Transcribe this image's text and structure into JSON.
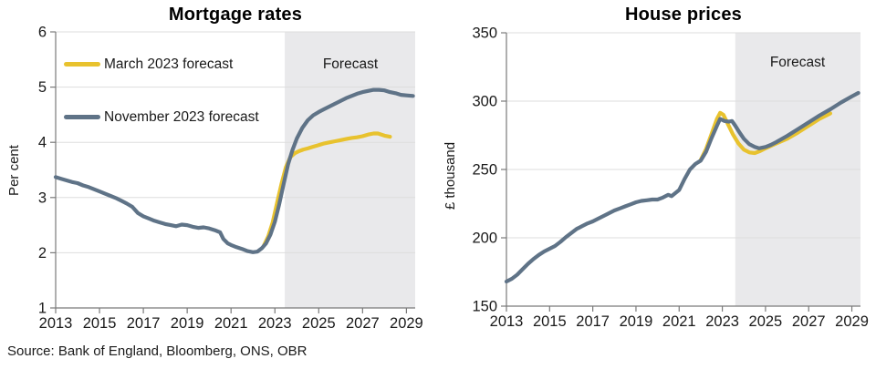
{
  "source": "Source: Bank of England, Bloomberg, ONS, OBR",
  "colors": {
    "march": "#E8C22E",
    "november": "#5F7387",
    "band": "#E9E9EB",
    "grid": "#DDDDDD",
    "axis": "#7A7A7A",
    "tick_text": "#1A1A1A"
  },
  "chart_data": [
    {
      "type": "line",
      "title": "Mortgage rates",
      "ylabel": "Per cent",
      "forecast_label": "Forecast",
      "x_ticks": [
        2013,
        2015,
        2017,
        2019,
        2021,
        2023,
        2025,
        2027,
        2029
      ],
      "y_ticks": [
        1,
        2,
        3,
        4,
        5,
        6
      ],
      "x_range": [
        2013,
        2029.4
      ],
      "y_range": [
        1,
        6
      ],
      "forecast_start": 2023.45,
      "grid": true,
      "legend_position": "top-left",
      "legend": [
        {
          "label": "March 2023 forecast",
          "color_key": "march"
        },
        {
          "label": "November 2023 forecast",
          "color_key": "november"
        }
      ],
      "series": [
        {
          "name": "March 2023 forecast",
          "color_key": "march",
          "points": [
            [
              2022.5,
              2.13
            ],
            [
              2022.7,
              2.3
            ],
            [
              2022.9,
              2.55
            ],
            [
              2023.1,
              2.9
            ],
            [
              2023.3,
              3.25
            ],
            [
              2023.5,
              3.55
            ],
            [
              2023.7,
              3.73
            ],
            [
              2023.9,
              3.8
            ],
            [
              2024.1,
              3.84
            ],
            [
              2024.3,
              3.87
            ],
            [
              2024.5,
              3.89
            ],
            [
              2024.75,
              3.92
            ],
            [
              2025,
              3.95
            ],
            [
              2025.25,
              3.98
            ],
            [
              2025.5,
              4.0
            ],
            [
              2025.75,
              4.02
            ],
            [
              2026,
              4.04
            ],
            [
              2026.25,
              4.06
            ],
            [
              2026.5,
              4.08
            ],
            [
              2026.75,
              4.09
            ],
            [
              2027,
              4.11
            ],
            [
              2027.25,
              4.14
            ],
            [
              2027.5,
              4.16
            ],
            [
              2027.7,
              4.16
            ],
            [
              2028,
              4.12
            ],
            [
              2028.25,
              4.1
            ]
          ]
        },
        {
          "name": "November 2023 forecast",
          "color_key": "november",
          "points": [
            [
              2013,
              3.37
            ],
            [
              2013.25,
              3.34
            ],
            [
              2013.5,
              3.31
            ],
            [
              2013.75,
              3.28
            ],
            [
              2014,
              3.26
            ],
            [
              2014.25,
              3.22
            ],
            [
              2014.5,
              3.19
            ],
            [
              2014.75,
              3.15
            ],
            [
              2015,
              3.11
            ],
            [
              2015.25,
              3.07
            ],
            [
              2015.5,
              3.03
            ],
            [
              2015.75,
              2.99
            ],
            [
              2016,
              2.94
            ],
            [
              2016.25,
              2.89
            ],
            [
              2016.5,
              2.83
            ],
            [
              2016.75,
              2.72
            ],
            [
              2017,
              2.66
            ],
            [
              2017.25,
              2.62
            ],
            [
              2017.5,
              2.58
            ],
            [
              2017.75,
              2.55
            ],
            [
              2018,
              2.52
            ],
            [
              2018.25,
              2.5
            ],
            [
              2018.5,
              2.48
            ],
            [
              2018.75,
              2.51
            ],
            [
              2019,
              2.5
            ],
            [
              2019.25,
              2.47
            ],
            [
              2019.5,
              2.45
            ],
            [
              2019.75,
              2.46
            ],
            [
              2020,
              2.44
            ],
            [
              2020.25,
              2.41
            ],
            [
              2020.5,
              2.37
            ],
            [
              2020.65,
              2.25
            ],
            [
              2020.85,
              2.17
            ],
            [
              2021,
              2.14
            ],
            [
              2021.25,
              2.1
            ],
            [
              2021.5,
              2.07
            ],
            [
              2021.75,
              2.03
            ],
            [
              2022,
              2.01
            ],
            [
              2022.2,
              2.02
            ],
            [
              2022.4,
              2.08
            ],
            [
              2022.6,
              2.17
            ],
            [
              2022.8,
              2.33
            ],
            [
              2023,
              2.56
            ],
            [
              2023.2,
              2.88
            ],
            [
              2023.4,
              3.25
            ],
            [
              2023.6,
              3.6
            ],
            [
              2023.8,
              3.86
            ],
            [
              2024,
              4.07
            ],
            [
              2024.25,
              4.26
            ],
            [
              2024.5,
              4.4
            ],
            [
              2024.75,
              4.49
            ],
            [
              2025,
              4.55
            ],
            [
              2025.25,
              4.6
            ],
            [
              2025.5,
              4.65
            ],
            [
              2025.75,
              4.7
            ],
            [
              2026,
              4.75
            ],
            [
              2026.25,
              4.8
            ],
            [
              2026.5,
              4.84
            ],
            [
              2026.75,
              4.88
            ],
            [
              2027,
              4.91
            ],
            [
              2027.25,
              4.93
            ],
            [
              2027.5,
              4.95
            ],
            [
              2027.75,
              4.95
            ],
            [
              2028,
              4.94
            ],
            [
              2028.25,
              4.91
            ],
            [
              2028.5,
              4.89
            ],
            [
              2028.75,
              4.86
            ],
            [
              2029,
              4.85
            ],
            [
              2029.3,
              4.84
            ]
          ]
        }
      ]
    },
    {
      "type": "line",
      "title": "House prices",
      "ylabel": "£ thousand",
      "forecast_label": "Forecast",
      "x_ticks": [
        2013,
        2015,
        2017,
        2019,
        2021,
        2023,
        2025,
        2027,
        2029
      ],
      "y_ticks": [
        150,
        200,
        250,
        300,
        350
      ],
      "x_range": [
        2013,
        2029.4
      ],
      "y_range": [
        150,
        350
      ],
      "forecast_start": 2023.6,
      "grid": true,
      "legend": [],
      "series": [
        {
          "name": "March 2023 forecast",
          "color_key": "march",
          "points": [
            [
              2022,
              257
            ],
            [
              2022.25,
              265
            ],
            [
              2022.5,
              276
            ],
            [
              2022.75,
              287
            ],
            [
              2022.9,
              291.5
            ],
            [
              2023.05,
              290
            ],
            [
              2023.25,
              283.5
            ],
            [
              2023.5,
              275.5
            ],
            [
              2023.75,
              269
            ],
            [
              2024,
              264.5
            ],
            [
              2024.25,
              262.5
            ],
            [
              2024.5,
              262
            ],
            [
              2024.75,
              263.5
            ],
            [
              2025,
              265.5
            ],
            [
              2025.5,
              269
            ],
            [
              2026,
              272.5
            ],
            [
              2026.5,
              277
            ],
            [
              2027,
              282
            ],
            [
              2027.5,
              287
            ],
            [
              2028,
              291
            ]
          ]
        },
        {
          "name": "November 2023 forecast",
          "color_key": "november",
          "points": [
            [
              2013,
              168
            ],
            [
              2013.25,
              170
            ],
            [
              2013.5,
              173
            ],
            [
              2013.75,
              177
            ],
            [
              2014,
              181
            ],
            [
              2014.25,
              184.5
            ],
            [
              2014.5,
              187.5
            ],
            [
              2014.75,
              190
            ],
            [
              2015,
              192
            ],
            [
              2015.25,
              194
            ],
            [
              2015.5,
              197
            ],
            [
              2015.75,
              200.5
            ],
            [
              2016,
              203.5
            ],
            [
              2016.25,
              206.5
            ],
            [
              2016.5,
              208.5
            ],
            [
              2016.75,
              210.5
            ],
            [
              2017,
              212
            ],
            [
              2017.25,
              214
            ],
            [
              2017.5,
              216
            ],
            [
              2017.75,
              218
            ],
            [
              2018,
              220
            ],
            [
              2018.25,
              221.5
            ],
            [
              2018.5,
              223
            ],
            [
              2018.75,
              224.5
            ],
            [
              2019,
              226
            ],
            [
              2019.25,
              227
            ],
            [
              2019.5,
              227.5
            ],
            [
              2019.75,
              228
            ],
            [
              2020,
              228
            ],
            [
              2020.25,
              229.5
            ],
            [
              2020.5,
              231.5
            ],
            [
              2020.65,
              230.5
            ],
            [
              2021,
              235
            ],
            [
              2021.25,
              243
            ],
            [
              2021.5,
              250
            ],
            [
              2021.75,
              254
            ],
            [
              2022,
              256.5
            ],
            [
              2022.25,
              263
            ],
            [
              2022.5,
              273
            ],
            [
              2022.75,
              282
            ],
            [
              2022.9,
              287
            ],
            [
              2023.1,
              285.5
            ],
            [
              2023.3,
              285
            ],
            [
              2023.45,
              285.5
            ],
            [
              2023.6,
              282
            ],
            [
              2023.8,
              277
            ],
            [
              2024,
              272.5
            ],
            [
              2024.25,
              268.5
            ],
            [
              2024.5,
              266.5
            ],
            [
              2024.7,
              265.5
            ],
            [
              2025,
              266.5
            ],
            [
              2025.25,
              268
            ],
            [
              2025.5,
              270
            ],
            [
              2026,
              274.5
            ],
            [
              2026.5,
              279.5
            ],
            [
              2027,
              284.5
            ],
            [
              2027.5,
              289.5
            ],
            [
              2028,
              294
            ],
            [
              2028.5,
              299
            ],
            [
              2029,
              303.5
            ],
            [
              2029.3,
              306
            ]
          ]
        }
      ]
    }
  ]
}
